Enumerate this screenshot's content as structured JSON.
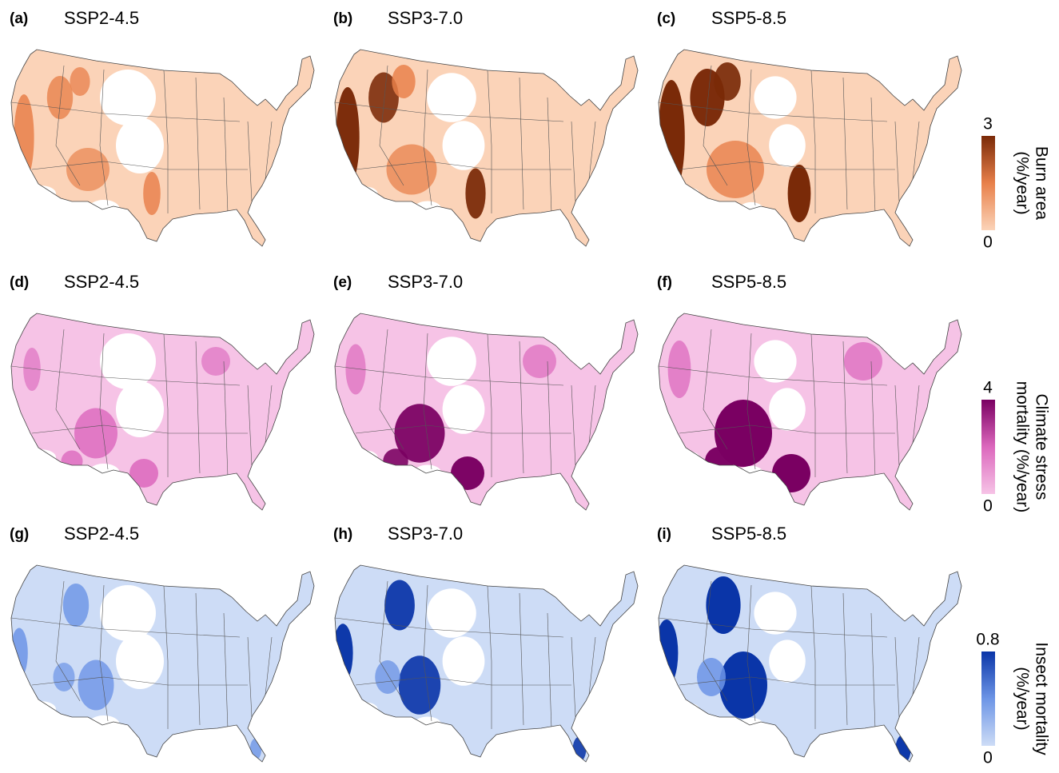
{
  "rows": [
    {
      "panels": [
        {
          "letter": "(a)",
          "title": "SSP2-4.5"
        },
        {
          "letter": "(b)",
          "title": "SSP3-7.0"
        },
        {
          "letter": "(c)",
          "title": "SSP5-8.5"
        }
      ],
      "colorbar": {
        "label_lines": [
          "Burn area",
          "(%/year)"
        ],
        "range": [
          0,
          3
        ],
        "ticks": [
          0,
          3
        ],
        "colors": [
          "#fbd3b8",
          "#e8804a",
          "#7a2a08"
        ]
      }
    },
    {
      "panels": [
        {
          "letter": "(d)",
          "title": "SSP2-4.5"
        },
        {
          "letter": "(e)",
          "title": "SSP3-7.0"
        },
        {
          "letter": "(f)",
          "title": "SSP5-8.5"
        }
      ],
      "colorbar": {
        "label_lines": [
          "Climate stress",
          "mortality (%/year)"
        ],
        "range": [
          0,
          4
        ],
        "ticks": [
          0,
          4
        ],
        "colors": [
          "#f6c3e6",
          "#dc68bd",
          "#7a0062"
        ]
      }
    },
    {
      "panels": [
        {
          "letter": "(g)",
          "title": "SSP2-4.5"
        },
        {
          "letter": "(h)",
          "title": "SSP3-7.0"
        },
        {
          "letter": "(i)",
          "title": "SSP5-8.5"
        }
      ],
      "colorbar": {
        "label_lines": [
          "Insect mortality",
          "(%/year)"
        ],
        "range": [
          0,
          0.8
        ],
        "ticks": [
          0,
          0.8
        ],
        "colors": [
          "#cddcf6",
          "#6d95e6",
          "#0a35a8"
        ]
      }
    }
  ]
}
